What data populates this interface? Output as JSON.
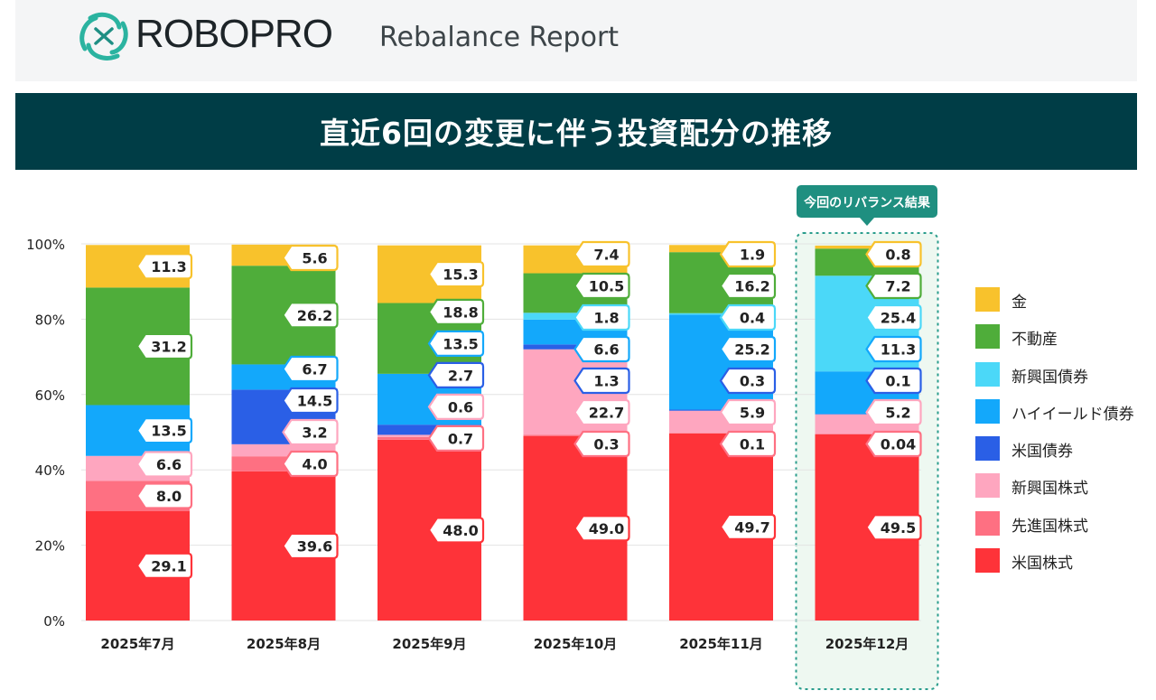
{
  "header": {
    "brand": "ROBOPRO",
    "subtitle": "Rebalance Report"
  },
  "banner": {
    "title": "直近6回の変更に伴う投資配分の推移"
  },
  "chart_data": {
    "type": "bar",
    "stacked": true,
    "title": "直近6回の変更に伴う投資配分の推移",
    "categories": [
      "2025年7月",
      "2025年8月",
      "2025年9月",
      "2025年10月",
      "2025年11月",
      "2025年12月"
    ],
    "yticks": [
      "0%",
      "20%",
      "40%",
      "60%",
      "80%",
      "100%"
    ],
    "ylim": [
      0,
      100
    ],
    "highlight": {
      "category_index": 5,
      "label": "今回のリバランス結果"
    },
    "series": [
      {
        "name": "米国株式",
        "color": "#fe3339",
        "values": [
          29.1,
          39.6,
          48.0,
          49.0,
          49.7,
          49.5
        ],
        "labels": [
          "29.1",
          "39.6",
          "48.0",
          "49.0",
          "49.7",
          "49.5"
        ]
      },
      {
        "name": "先進国株式",
        "color": "#fe7082",
        "values": [
          8.0,
          4.0,
          0.7,
          0.3,
          0.1,
          0.04
        ],
        "labels": [
          "8.0",
          "4.0",
          "0.7",
          "0.3",
          "0.1",
          "0.04"
        ]
      },
      {
        "name": "新興国株式",
        "color": "#fea6bf",
        "values": [
          6.6,
          3.2,
          0.6,
          22.7,
          5.9,
          5.2
        ],
        "labels": [
          "6.6",
          "3.2",
          "0.6",
          "22.7",
          "5.9",
          "5.2"
        ]
      },
      {
        "name": "米国債券",
        "color": "#2a5fe6",
        "values": [
          0,
          14.5,
          2.7,
          1.3,
          0.3,
          0.1
        ],
        "labels": [
          "",
          "14.5",
          "2.7",
          "1.3",
          "0.3",
          "0.1"
        ]
      },
      {
        "name": "ハイイールド債券",
        "color": "#13a8fb",
        "values": [
          13.5,
          6.7,
          13.5,
          6.6,
          25.2,
          11.3
        ],
        "labels": [
          "13.5",
          "6.7",
          "13.5",
          "6.6",
          "25.2",
          "11.3"
        ]
      },
      {
        "name": "新興国債券",
        "color": "#4bd8f8",
        "values": [
          0,
          0,
          0,
          1.8,
          0.4,
          25.4
        ],
        "labels": [
          "",
          "",
          "",
          "1.8",
          "0.4",
          "25.4"
        ]
      },
      {
        "name": "不動産",
        "color": "#4fad3a",
        "values": [
          31.2,
          26.2,
          18.8,
          10.5,
          16.2,
          7.2
        ],
        "labels": [
          "31.2",
          "26.2",
          "18.8",
          "10.5",
          "16.2",
          "7.2"
        ]
      },
      {
        "name": "金",
        "color": "#f8c22c",
        "values": [
          11.3,
          5.6,
          15.3,
          7.4,
          1.9,
          0.8
        ],
        "labels": [
          "11.3",
          "5.6",
          "15.3",
          "7.4",
          "1.9",
          "0.8"
        ]
      }
    ]
  }
}
